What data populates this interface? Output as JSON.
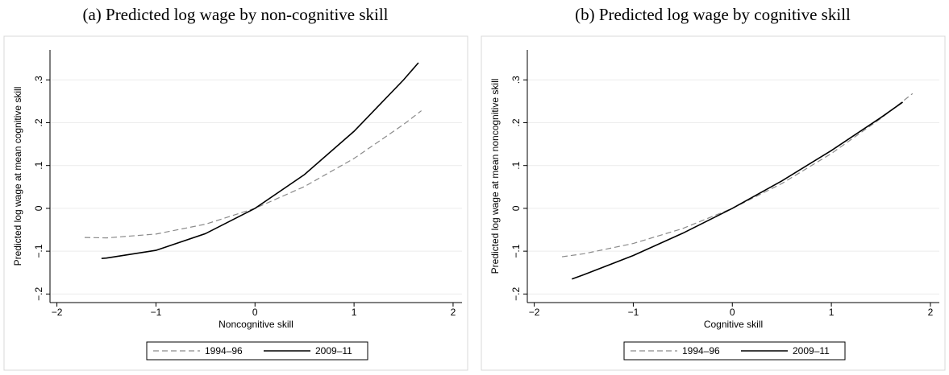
{
  "chart_data": [
    {
      "type": "line",
      "title": "(a) Predicted log wage by non-cognitive skill",
      "x_label": "Noncognitive skill",
      "y_label": "Predicted log wage at mean cognitive skill",
      "xlim": [
        -2.07,
        2.09
      ],
      "ylim": [
        -0.22,
        0.37
      ],
      "xticks": [
        {
          "value": -2,
          "label": "−2"
        },
        {
          "value": -1,
          "label": "−1"
        },
        0,
        1,
        2
      ],
      "yticks": [
        {
          "value": -0.2,
          "label": "−.2"
        },
        {
          "value": -0.1,
          "label": "−.1"
        },
        0,
        {
          "value": 0.1,
          "label": ".1"
        },
        {
          "value": 0.2,
          "label": ".2"
        },
        {
          "value": 0.3,
          "label": ".3"
        }
      ],
      "grid": true,
      "legend": "bottom",
      "series": [
        {
          "name": "1994–96",
          "color": "#8a8a8a",
          "style": "dashed",
          "x": [
            -1.72,
            -1.5,
            -1,
            -0.5,
            0,
            0.5,
            1,
            1.5,
            1.68
          ],
          "values": [
            -0.068,
            -0.069,
            -0.06,
            -0.037,
            0,
            0.051,
            0.1165,
            0.196,
            0.228
          ]
        },
        {
          "name": "2009–11",
          "color": "#000000",
          "style": "solid",
          "x": [
            -1.55,
            -1.5,
            -1,
            -0.5,
            0,
            0.5,
            1,
            1.5,
            1.65
          ],
          "values": [
            -0.117,
            -0.116,
            -0.098,
            -0.059,
            0,
            0.079,
            0.18,
            0.3,
            0.34
          ]
        }
      ]
    },
    {
      "type": "line",
      "title": "(b) Predicted log wage by cognitive skill",
      "x_label": "Cognitive skill",
      "y_label": "Predicted log wage at mean noncognitive skill",
      "xlim": [
        -2.07,
        2.09
      ],
      "ylim": [
        -0.22,
        0.37
      ],
      "xticks": [
        {
          "value": -2,
          "label": "−2"
        },
        {
          "value": -1,
          "label": "−1"
        },
        0,
        1,
        2
      ],
      "yticks": [
        {
          "value": -0.2,
          "label": "−.2"
        },
        {
          "value": -0.1,
          "label": "−.1"
        },
        0,
        {
          "value": 0.1,
          "label": ".1"
        },
        {
          "value": 0.2,
          "label": ".2"
        },
        {
          "value": 0.3,
          "label": ".3"
        }
      ],
      "grid": true,
      "legend": "bottom",
      "series": [
        {
          "name": "1994–96",
          "color": "#8a8a8a",
          "style": "dashed",
          "x": [
            -1.72,
            -1.5,
            -1,
            -0.5,
            0,
            0.5,
            1,
            1.5,
            1.82
          ],
          "values": [
            -0.113,
            -0.106,
            -0.082,
            -0.047,
            0,
            0.058,
            0.128,
            0.21,
            0.268
          ]
        },
        {
          "name": "2009–11",
          "color": "#000000",
          "style": "solid",
          "x": [
            -1.62,
            -1.5,
            -1,
            -0.5,
            0,
            0.5,
            1,
            1.5,
            1.72
          ],
          "values": [
            -0.165,
            -0.155,
            -0.11,
            -0.058,
            0,
            0.064,
            0.135,
            0.212,
            0.248
          ]
        }
      ]
    }
  ]
}
